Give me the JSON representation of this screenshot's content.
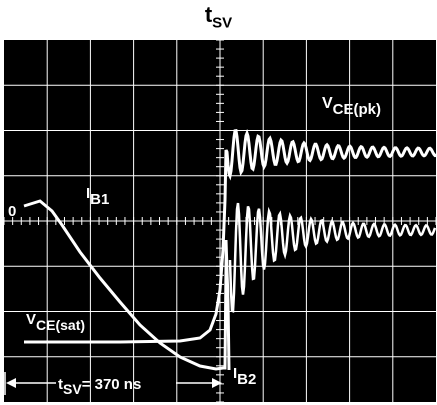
{
  "figure": {
    "title_main": "t",
    "title_sub": "SV"
  },
  "chart_data": {
    "type": "line",
    "title": "tSV",
    "grid": true,
    "grid_divisions": {
      "x": 10,
      "y": 8
    },
    "annotations": {
      "zero_marker": "0",
      "ib1_main": "I",
      "ib1_sub": "B1",
      "ib2_main": "I",
      "ib2_sub": "B2",
      "vce_pk_main": "V",
      "vce_pk_sub": "CE(pk)",
      "vce_sat_main": "V",
      "vce_sat_sub": "CE(sat)",
      "tsv_main": "t",
      "tsv_sub": "SV",
      "tsv_value": "= 370 ns"
    },
    "series": [
      {
        "values_desc": "base current: IB1 plateau then ramp down to IB2"
      },
      {
        "values_desc": "collector-emitter voltage: VCE(sat) then ringing to VCE(pk)"
      }
    ]
  },
  "colors": {
    "screen": "#000000",
    "trace": "#ffffff",
    "grid": "#ffffff"
  }
}
